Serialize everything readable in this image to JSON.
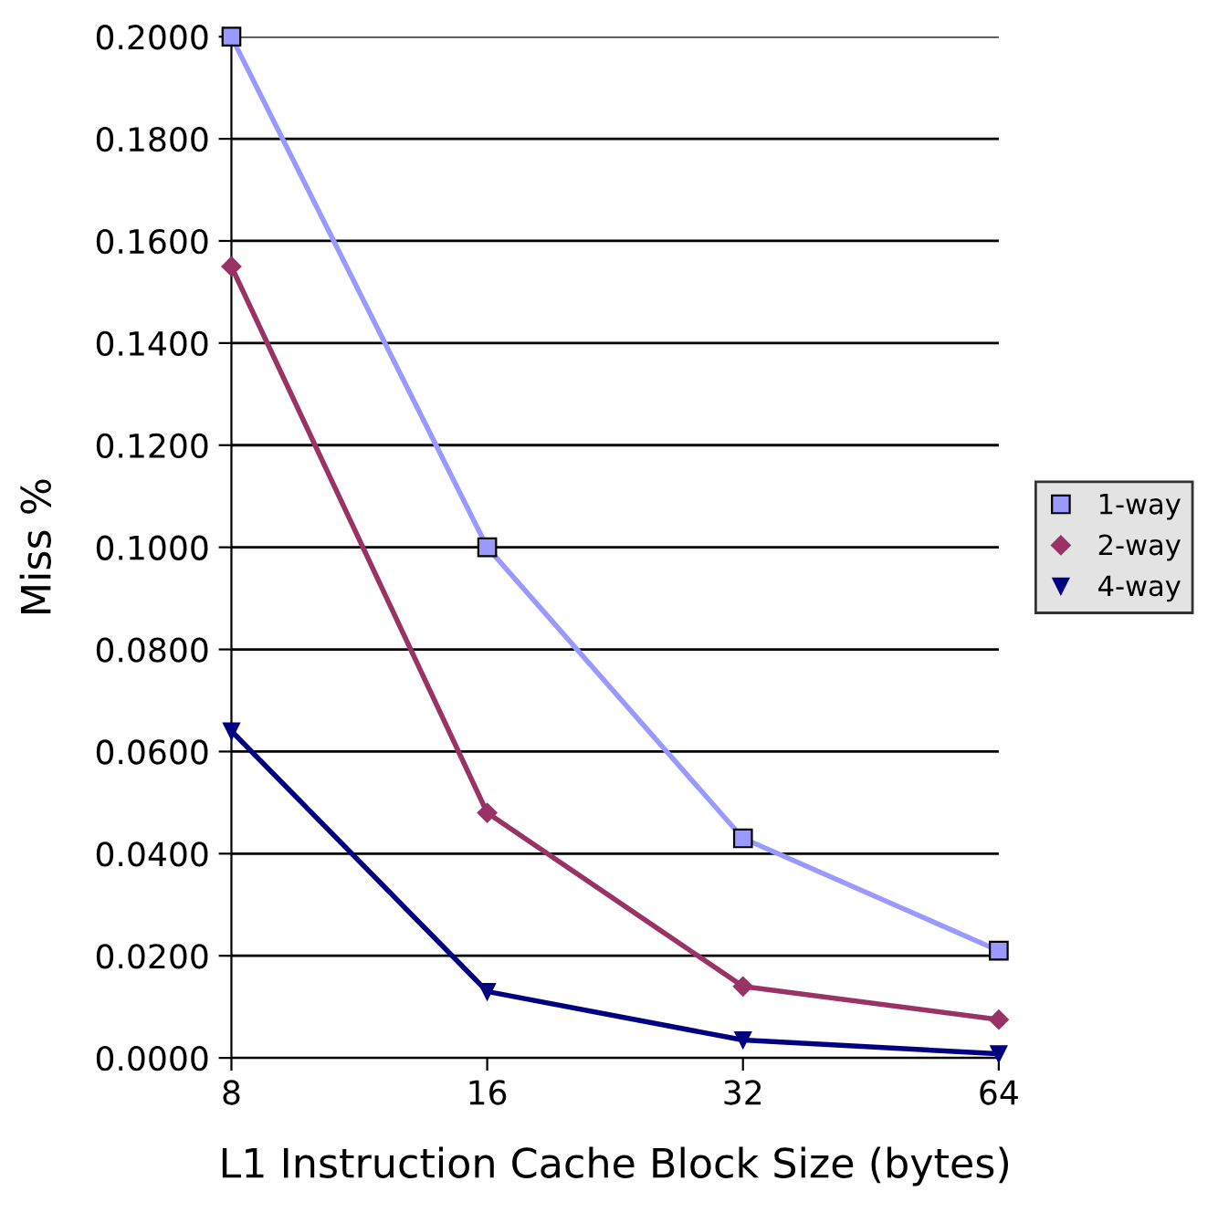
{
  "chart_data": {
    "type": "line",
    "xlabel": "L1 Instruction Cache Block Size (bytes)",
    "ylabel": "Miss %",
    "categories": [
      "8",
      "16",
      "32",
      "64"
    ],
    "series": [
      {
        "name": "1-way",
        "color": "#9999ff",
        "marker": "square",
        "values": [
          0.2,
          0.1,
          0.043,
          0.021
        ]
      },
      {
        "name": "2-way",
        "color": "#993366",
        "marker": "diamond",
        "values": [
          0.155,
          0.048,
          0.014,
          0.0075
        ]
      },
      {
        "name": "4-way",
        "color": "#000080",
        "marker": "triangle",
        "values": [
          0.064,
          0.013,
          0.0035,
          0.0008
        ]
      }
    ],
    "ylim": [
      0,
      0.2
    ],
    "yticks": [
      {
        "value": 0,
        "label": "0.0000"
      },
      {
        "value": 0.02,
        "label": "0.0200"
      },
      {
        "value": 0.04,
        "label": "0.0400"
      },
      {
        "value": 0.06,
        "label": "0.0600"
      },
      {
        "value": 0.08,
        "label": "0.0800"
      },
      {
        "value": 0.1,
        "label": "0.1000"
      },
      {
        "value": 0.12,
        "label": "0.1200"
      },
      {
        "value": 0.14,
        "label": "0.1400"
      },
      {
        "value": 0.16,
        "label": "0.1600"
      },
      {
        "value": 0.18,
        "label": "0.1800"
      },
      {
        "value": 0.2,
        "label": "0.2000"
      }
    ],
    "grid": "y",
    "legend": "right",
    "line_style": "solid"
  }
}
